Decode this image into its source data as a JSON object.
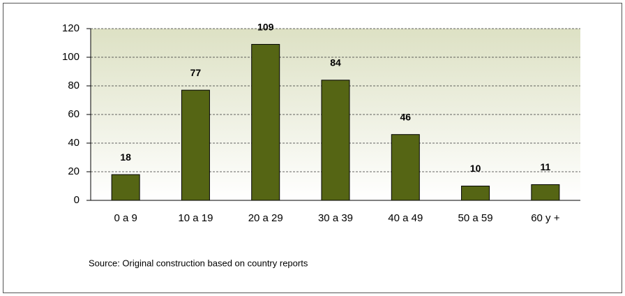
{
  "chart_data": {
    "type": "bar",
    "categories": [
      "0 a 9",
      "10 a 19",
      "20 a 29",
      "30 a 39",
      "40 a 49",
      "50 a 59",
      "60 y +"
    ],
    "values": [
      18,
      77,
      109,
      84,
      46,
      10,
      11
    ],
    "color": "#556514",
    "ylim": [
      0,
      120
    ],
    "yticks": [
      0,
      20,
      40,
      60,
      80,
      100,
      120
    ],
    "grid": true,
    "source": "Source: Original construction based on country reports"
  }
}
